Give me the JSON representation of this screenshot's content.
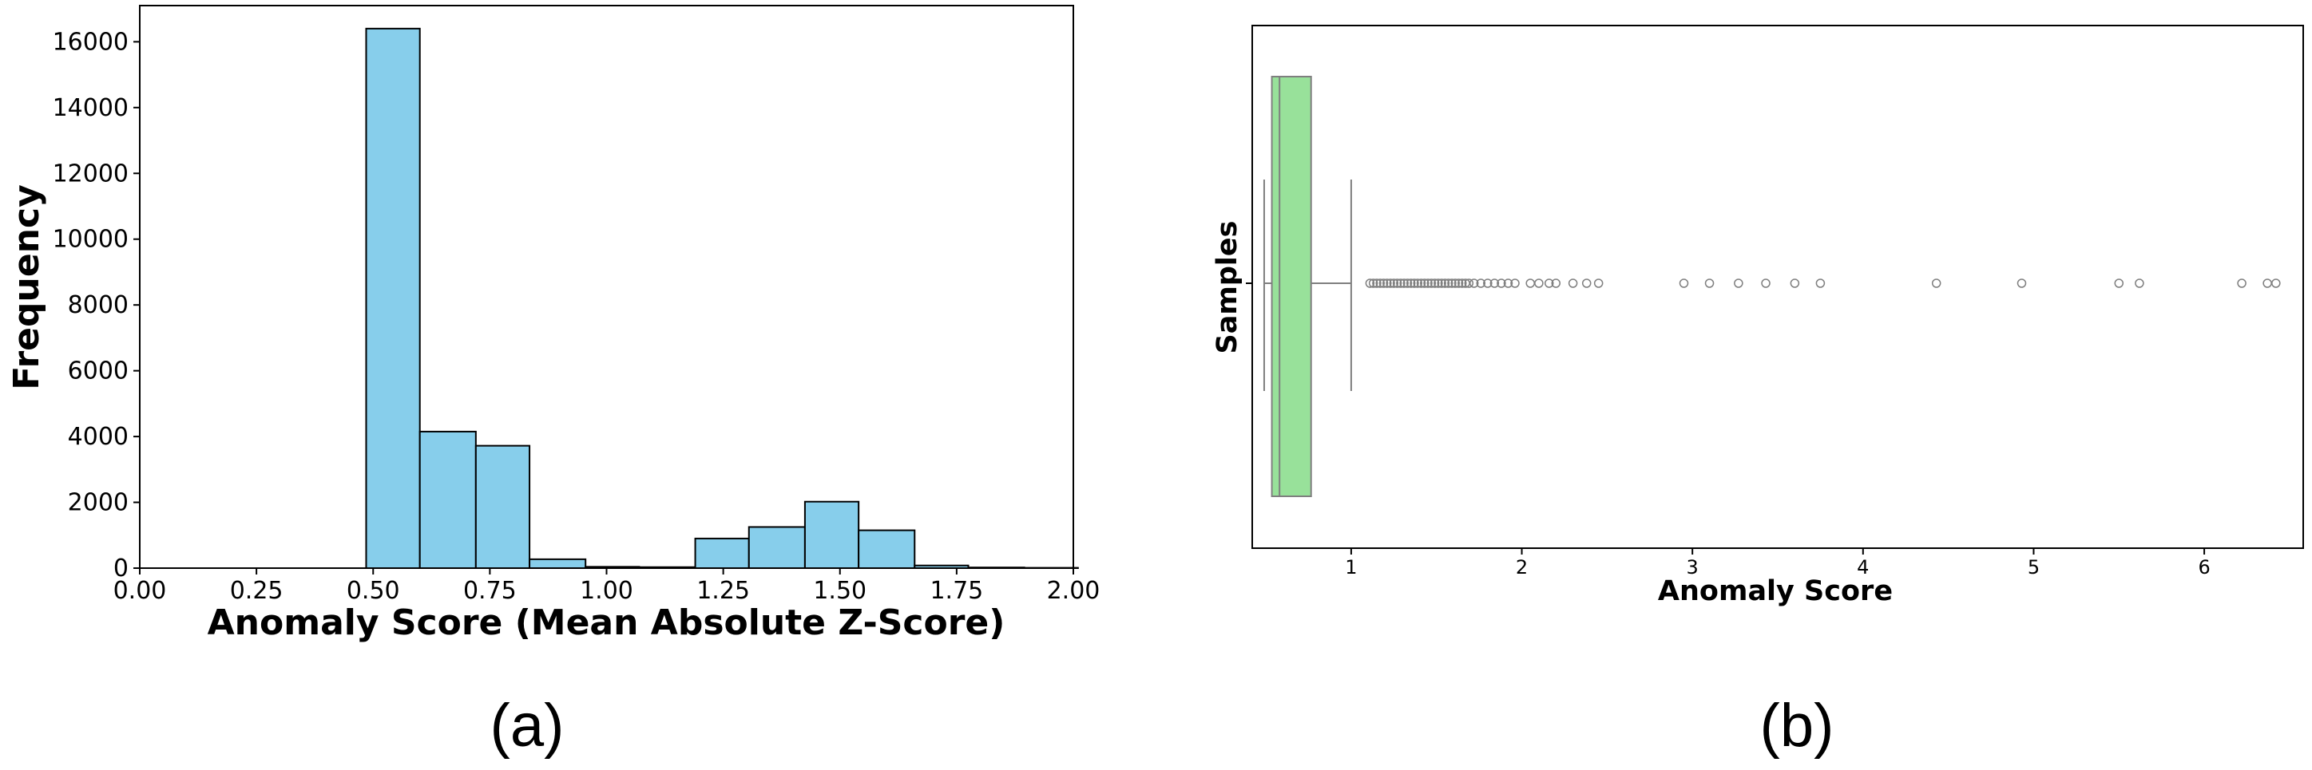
{
  "chart_data": [
    {
      "type": "bar",
      "xlabel": "Anomaly Score (Mean Absolute Z-Score)",
      "ylabel": "Frequency",
      "xlim": [
        0,
        2.0
      ],
      "ylim": [
        0,
        17100
      ],
      "x_ticks": [
        "0.00",
        "0.25",
        "0.50",
        "0.75",
        "1.00",
        "1.25",
        "1.50",
        "1.75",
        "2.00"
      ],
      "y_ticks": [
        "0",
        "2000",
        "4000",
        "6000",
        "8000",
        "10000",
        "12000",
        "14000",
        "16000"
      ],
      "bin_edges": [
        0.485,
        0.6,
        0.72,
        0.835,
        0.955,
        1.07,
        1.19,
        1.305,
        1.425,
        1.54,
        1.66,
        1.775,
        1.895,
        2.01
      ],
      "values": [
        16400,
        4150,
        3720,
        270,
        40,
        30,
        900,
        1250,
        2020,
        1150,
        80,
        20,
        10
      ],
      "bar_color": "#87ceeb",
      "edge_color": "#000000",
      "grid": false,
      "label": "(a)"
    },
    {
      "type": "box",
      "xlabel": "Anomaly Score",
      "ylabel": "Samples",
      "xlim": [
        0.42,
        6.58
      ],
      "x_ticks": [
        "1",
        "2",
        "3",
        "4",
        "5",
        "6"
      ],
      "stats": {
        "whislo": 0.49,
        "q1": 0.535,
        "median": 0.58,
        "q3": 0.765,
        "whishi": 1.0
      },
      "outliers": [
        1.11,
        1.13,
        1.15,
        1.17,
        1.19,
        1.21,
        1.23,
        1.25,
        1.27,
        1.29,
        1.31,
        1.33,
        1.35,
        1.37,
        1.39,
        1.41,
        1.43,
        1.45,
        1.47,
        1.49,
        1.51,
        1.53,
        1.55,
        1.57,
        1.59,
        1.61,
        1.63,
        1.65,
        1.67,
        1.69,
        1.72,
        1.76,
        1.8,
        1.84,
        1.88,
        1.92,
        1.96,
        2.05,
        2.1,
        2.16,
        2.2,
        2.3,
        2.38,
        2.45,
        2.95,
        3.1,
        3.27,
        3.43,
        3.6,
        3.75,
        4.43,
        4.93,
        5.5,
        5.62,
        6.22,
        6.37,
        6.42
      ],
      "box_color": "#98e19a",
      "grid": false,
      "label": "(b)"
    }
  ]
}
